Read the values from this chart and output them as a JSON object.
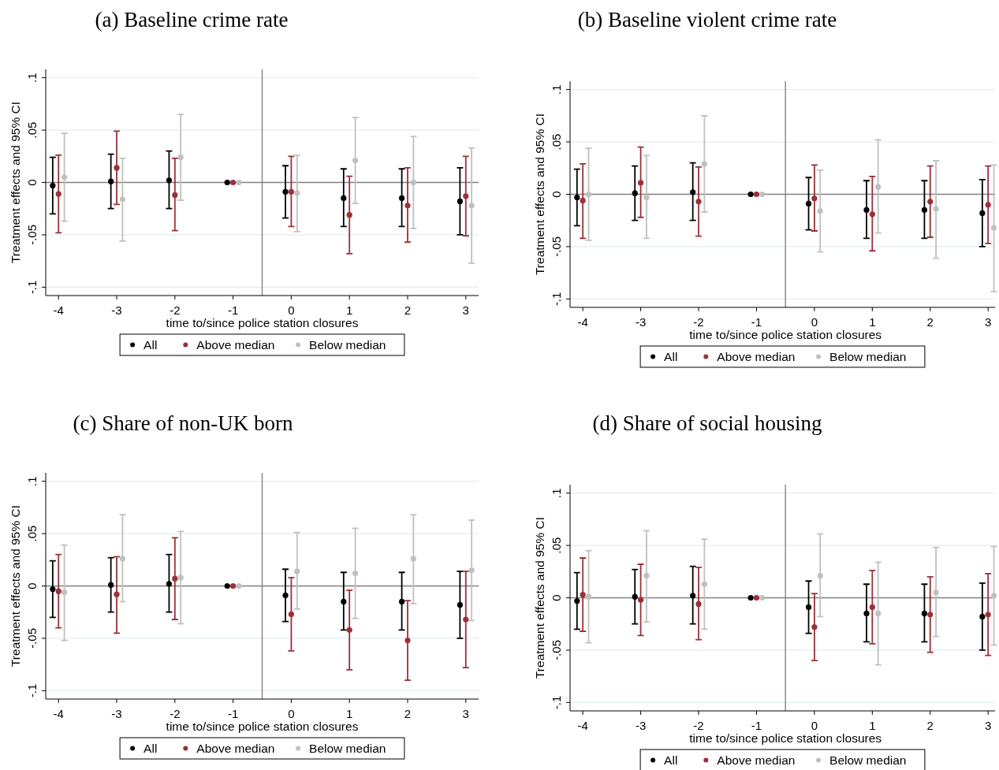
{
  "chart_data": [
    {
      "type": "scatter",
      "title": "(a) Baseline crime rate",
      "xlabel": "time to/since police station closures",
      "ylabel": "Treatment effects and 95% CI",
      "xlim": [
        -4.22,
        3.22
      ],
      "xticks": [
        -4,
        -3,
        -2,
        -1,
        0,
        1,
        2,
        3
      ],
      "ylim": [
        -0.108,
        0.108
      ],
      "yticks": [
        {
          "value": -0.1,
          "label": "-.1"
        },
        {
          "value": -0.05,
          "label": "-.05"
        },
        {
          "value": 0,
          "label": "0"
        },
        {
          "value": 0.05,
          "label": ".05"
        },
        {
          "value": 0.1,
          "label": ".1"
        }
      ],
      "grid": "y",
      "legend": "bottom",
      "marker": "circle",
      "ref_lines": [
        {
          "axis": "x",
          "value": -0.5,
          "color": "#8c8c8c"
        },
        {
          "axis": "y",
          "value": 0,
          "color": "#7f7f7f"
        }
      ],
      "series": [
        {
          "name": "All",
          "color": "#000000",
          "x": [
            -4.1,
            -3.1,
            -2.1,
            -1.1,
            -0.1,
            0.9,
            1.9,
            2.9
          ],
          "values": [
            -0.003,
            0.001,
            0.002,
            0,
            -0.009,
            -0.015,
            -0.015,
            -0.018
          ],
          "errors": [
            [
              -0.03,
              0.024
            ],
            [
              -0.025,
              0.027
            ],
            [
              -0.025,
              0.03
            ],
            null,
            [
              -0.034,
              0.016
            ],
            [
              -0.042,
              0.013
            ],
            [
              -0.042,
              0.013
            ],
            [
              -0.05,
              0.014
            ]
          ]
        },
        {
          "name": "Above median",
          "color": "#9c3039",
          "x": [
            -4,
            -3,
            -2,
            -1,
            0,
            1,
            2,
            3
          ],
          "values": [
            -0.011,
            0.014,
            -0.012,
            0,
            -0.009,
            -0.031,
            -0.022,
            -0.013
          ],
          "errors": [
            [
              -0.048,
              0.026
            ],
            [
              -0.021,
              0.049
            ],
            [
              -0.046,
              0.023
            ],
            null,
            [
              -0.042,
              0.025
            ],
            [
              -0.068,
              0.006
            ],
            [
              -0.057,
              0.014
            ],
            [
              -0.051,
              0.025
            ]
          ]
        },
        {
          "name": "Below median",
          "color": "#c0c0c0",
          "x": [
            -3.9,
            -2.9,
            -1.9,
            -0.9,
            0.1,
            1.1,
            2.1,
            3.1
          ],
          "values": [
            0.005,
            -0.016,
            0.024,
            0,
            -0.01,
            0.021,
            0.0,
            -0.022
          ],
          "errors": [
            [
              -0.037,
              0.047
            ],
            [
              -0.056,
              0.023
            ],
            [
              -0.017,
              0.065
            ],
            null,
            [
              -0.047,
              0.026
            ],
            [
              -0.02,
              0.062
            ],
            [
              -0.044,
              0.044
            ],
            [
              -0.077,
              0.033
            ]
          ]
        }
      ]
    },
    {
      "type": "scatter",
      "title": "(b) Baseline violent crime rate",
      "xlabel": "time to/since police station closures",
      "ylabel": "Treatment effects and 95% CI",
      "xlim": [
        -4.22,
        3.12
      ],
      "xticks": [
        -4,
        -3,
        -2,
        -1,
        0,
        1,
        2,
        3
      ],
      "ylim": [
        -0.108,
        0.108
      ],
      "yticks": [
        {
          "value": -0.1,
          "label": "-.1"
        },
        {
          "value": -0.05,
          "label": "-.05"
        },
        {
          "value": 0,
          "label": "0"
        },
        {
          "value": 0.05,
          "label": ".05"
        },
        {
          "value": 0.1,
          "label": ".1"
        }
      ],
      "grid": "y",
      "legend": "bottom",
      "marker": "circle",
      "ref_lines": [
        {
          "axis": "x",
          "value": -0.5,
          "color": "#8c8c8c"
        },
        {
          "axis": "y",
          "value": 0,
          "color": "#7f7f7f"
        }
      ],
      "series": [
        {
          "name": "All",
          "color": "#000000",
          "x": [
            -4.1,
            -3.1,
            -2.1,
            -1.1,
            -0.1,
            0.9,
            1.9,
            2.9
          ],
          "values": [
            -0.003,
            0.001,
            0.002,
            0,
            -0.009,
            -0.015,
            -0.015,
            -0.018
          ],
          "errors": [
            [
              -0.03,
              0.024
            ],
            [
              -0.025,
              0.027
            ],
            [
              -0.025,
              0.03
            ],
            null,
            [
              -0.034,
              0.016
            ],
            [
              -0.042,
              0.013
            ],
            [
              -0.042,
              0.013
            ],
            [
              -0.05,
              0.014
            ]
          ]
        },
        {
          "name": "Above median",
          "color": "#9c3039",
          "x": [
            -4,
            -3,
            -2,
            -1,
            0,
            1,
            2,
            3
          ],
          "values": [
            -0.006,
            0.011,
            -0.007,
            0,
            -0.004,
            -0.019,
            -0.007,
            -0.01
          ],
          "errors": [
            [
              -0.042,
              0.029
            ],
            [
              -0.022,
              0.045
            ],
            [
              -0.04,
              0.026
            ],
            null,
            [
              -0.035,
              0.028
            ],
            [
              -0.054,
              0.017
            ],
            [
              -0.041,
              0.027
            ],
            [
              -0.047,
              0.027
            ]
          ]
        },
        {
          "name": "Below median",
          "color": "#c0c0c0",
          "x": [
            -3.9,
            -2.9,
            -1.9,
            -0.9,
            0.1,
            1.1,
            2.1,
            3.1
          ],
          "values": [
            0.0,
            -0.003,
            0.029,
            0,
            -0.016,
            0.007,
            -0.014,
            -0.032
          ],
          "errors": [
            [
              -0.044,
              0.044
            ],
            [
              -0.042,
              0.037
            ],
            [
              -0.017,
              0.075
            ],
            null,
            [
              -0.055,
              0.023
            ],
            [
              -0.037,
              0.052
            ],
            [
              -0.061,
              0.032
            ],
            [
              -0.093,
              0.028
            ]
          ]
        }
      ]
    },
    {
      "type": "scatter",
      "title": "(c) Share of non-UK born",
      "xlabel": "time to/since police station closures",
      "ylabel": "Treatment effects and 95% CI",
      "xlim": [
        -4.22,
        3.22
      ],
      "xticks": [
        -4,
        -3,
        -2,
        -1,
        0,
        1,
        2,
        3
      ],
      "ylim": [
        -0.108,
        0.108
      ],
      "yticks": [
        {
          "value": -0.1,
          "label": "-.1"
        },
        {
          "value": -0.05,
          "label": "-.05"
        },
        {
          "value": 0,
          "label": "0"
        },
        {
          "value": 0.05,
          "label": ".05"
        },
        {
          "value": 0.1,
          "label": ".1"
        }
      ],
      "grid": "y",
      "legend": "bottom",
      "marker": "circle",
      "ref_lines": [
        {
          "axis": "x",
          "value": -0.5,
          "color": "#8c8c8c"
        },
        {
          "axis": "y",
          "value": 0,
          "color": "#7f7f7f"
        }
      ],
      "series": [
        {
          "name": "All",
          "color": "#000000",
          "x": [
            -4.1,
            -3.1,
            -2.1,
            -1.1,
            -0.1,
            0.9,
            1.9,
            2.9
          ],
          "values": [
            -0.003,
            0.001,
            0.002,
            0,
            -0.009,
            -0.015,
            -0.015,
            -0.018
          ],
          "errors": [
            [
              -0.03,
              0.024
            ],
            [
              -0.025,
              0.027
            ],
            [
              -0.025,
              0.03
            ],
            null,
            [
              -0.034,
              0.016
            ],
            [
              -0.042,
              0.013
            ],
            [
              -0.042,
              0.013
            ],
            [
              -0.05,
              0.014
            ]
          ]
        },
        {
          "name": "Above median",
          "color": "#9c3039",
          "x": [
            -4,
            -3,
            -2,
            -1,
            0,
            1,
            2,
            3
          ],
          "values": [
            -0.005,
            -0.008,
            0.007,
            0,
            -0.027,
            -0.042,
            -0.052,
            -0.032
          ],
          "errors": [
            [
              -0.04,
              0.03
            ],
            [
              -0.045,
              0.028
            ],
            [
              -0.032,
              0.046
            ],
            null,
            [
              -0.062,
              0.008
            ],
            [
              -0.08,
              -0.004
            ],
            [
              -0.09,
              -0.014
            ],
            [
              -0.078,
              0.014
            ]
          ]
        },
        {
          "name": "Below median",
          "color": "#c0c0c0",
          "x": [
            -3.9,
            -2.9,
            -1.9,
            -0.9,
            0.1,
            1.1,
            2.1,
            3.1
          ],
          "values": [
            -0.006,
            0.026,
            0.008,
            0,
            0.014,
            0.012,
            0.026,
            0.015
          ],
          "errors": [
            [
              -0.052,
              0.039
            ],
            [
              -0.015,
              0.068
            ],
            [
              -0.036,
              0.052
            ],
            null,
            [
              -0.022,
              0.051
            ],
            [
              -0.031,
              0.055
            ],
            [
              -0.017,
              0.068
            ],
            [
              -0.033,
              0.063
            ]
          ]
        }
      ]
    },
    {
      "type": "scatter",
      "title": "(d) Share of social housing",
      "xlabel": "time to/since police station closures",
      "ylabel": "Treatment effects and 95% CI",
      "xlim": [
        -4.22,
        3.12
      ],
      "xticks": [
        -4,
        -3,
        -2,
        -1,
        0,
        1,
        2,
        3
      ],
      "ylim": [
        -0.108,
        0.108
      ],
      "yticks": [
        {
          "value": -0.1,
          "label": "-.1"
        },
        {
          "value": -0.05,
          "label": "-.05"
        },
        {
          "value": 0,
          "label": "0"
        },
        {
          "value": 0.05,
          "label": ".05"
        },
        {
          "value": 0.1,
          "label": ".1"
        }
      ],
      "grid": "y",
      "legend": "bottom",
      "marker": "circle",
      "ref_lines": [
        {
          "axis": "x",
          "value": -0.5,
          "color": "#8c8c8c"
        },
        {
          "axis": "y",
          "value": 0,
          "color": "#7f7f7f"
        }
      ],
      "series": [
        {
          "name": "All",
          "color": "#000000",
          "x": [
            -4.1,
            -3.1,
            -2.1,
            -1.1,
            -0.1,
            0.9,
            1.9,
            2.9
          ],
          "values": [
            -0.003,
            0.001,
            0.002,
            0,
            -0.009,
            -0.015,
            -0.015,
            -0.018
          ],
          "errors": [
            [
              -0.03,
              0.024
            ],
            [
              -0.025,
              0.027
            ],
            [
              -0.025,
              0.03
            ],
            null,
            [
              -0.034,
              0.016
            ],
            [
              -0.042,
              0.013
            ],
            [
              -0.042,
              0.013
            ],
            [
              -0.05,
              0.014
            ]
          ]
        },
        {
          "name": "Above median",
          "color": "#9c3039",
          "x": [
            -4,
            -3,
            -2,
            -1,
            0,
            1,
            2,
            3
          ],
          "values": [
            0.003,
            -0.002,
            -0.006,
            0,
            -0.028,
            -0.009,
            -0.016,
            -0.016
          ],
          "errors": [
            [
              -0.032,
              0.038
            ],
            [
              -0.036,
              0.032
            ],
            [
              -0.04,
              0.029
            ],
            null,
            [
              -0.06,
              0.004
            ],
            [
              -0.044,
              0.026
            ],
            [
              -0.052,
              0.02
            ],
            [
              -0.055,
              0.023
            ]
          ]
        },
        {
          "name": "Below median",
          "color": "#c0c0c0",
          "x": [
            -3.9,
            -2.9,
            -1.9,
            -0.9,
            0.1,
            1.1,
            2.1,
            3.1
          ],
          "values": [
            0.001,
            0.021,
            0.013,
            0,
            0.021,
            -0.015,
            0.005,
            0.002
          ],
          "errors": [
            [
              -0.043,
              0.045
            ],
            [
              -0.023,
              0.064
            ],
            [
              -0.03,
              0.056
            ],
            null,
            [
              -0.018,
              0.061
            ],
            [
              -0.064,
              0.034
            ],
            [
              -0.037,
              0.048
            ],
            [
              -0.045,
              0.049
            ]
          ]
        }
      ]
    }
  ]
}
